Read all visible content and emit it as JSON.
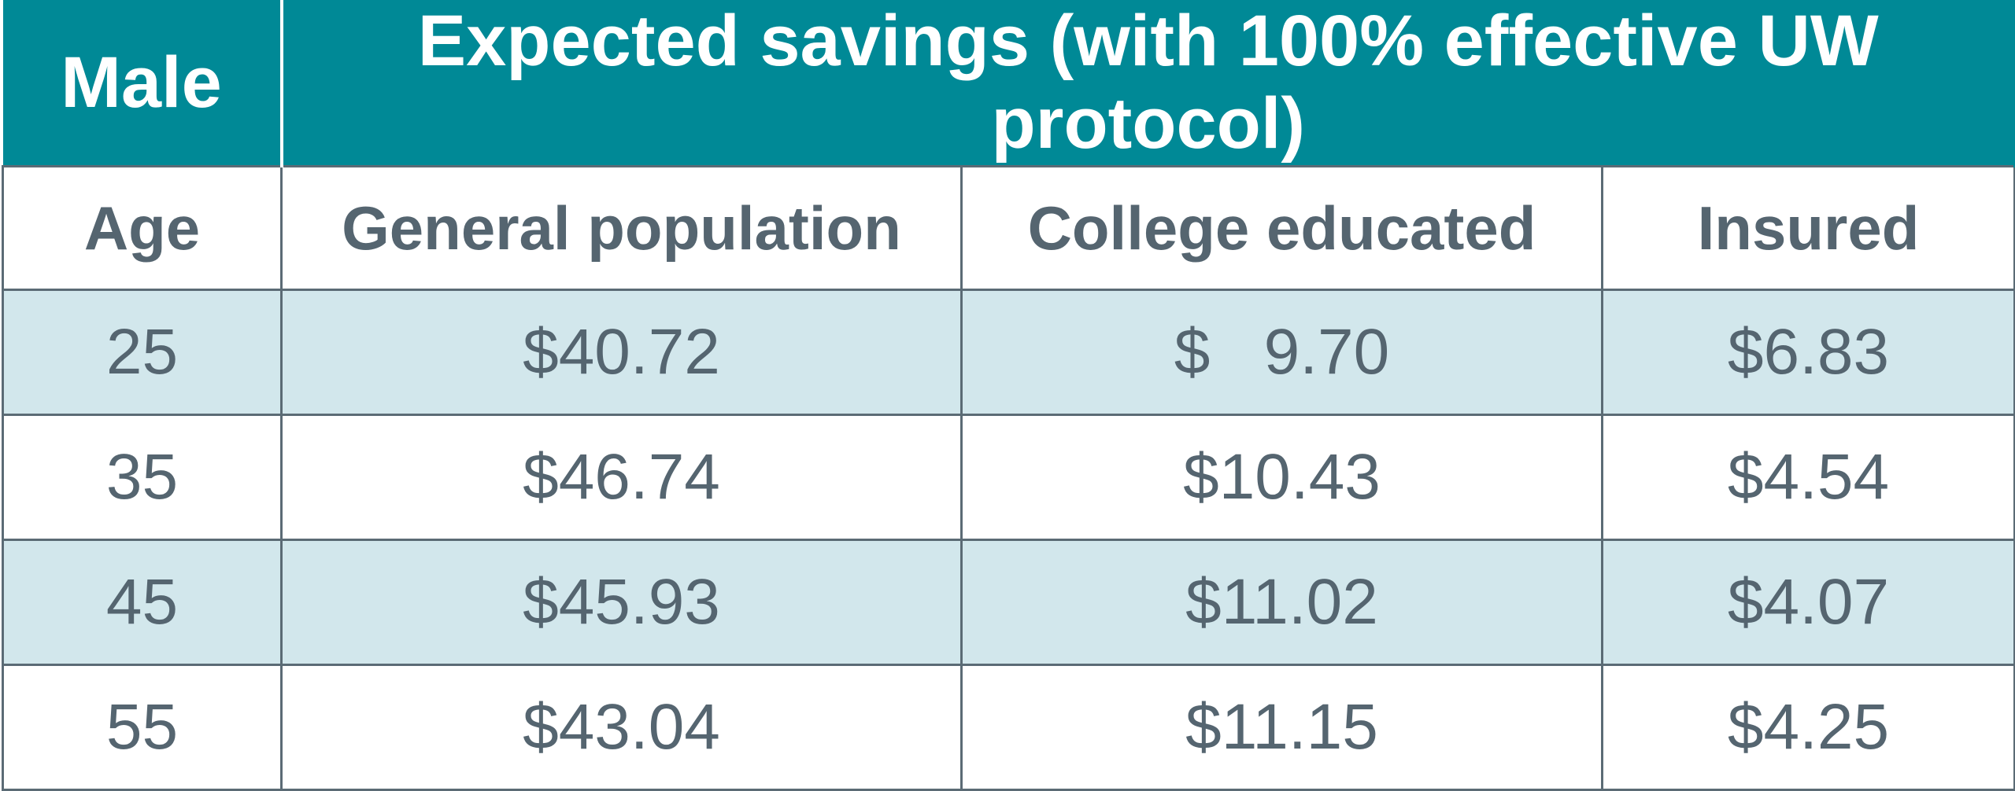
{
  "chart_data": {
    "type": "table",
    "header": {
      "group_label": "Male",
      "title": "Expected savings (with 100% effective UW protocol)"
    },
    "columns": [
      "Age",
      "General population",
      "College educated",
      "Insured"
    ],
    "rows": [
      [
        "25",
        "$40.72",
        "$   9.70",
        "$6.83"
      ],
      [
        "35",
        "$46.74",
        "$10.43",
        "$4.54"
      ],
      [
        "45",
        "$45.93",
        "$11.02",
        "$4.07"
      ],
      [
        "55",
        "$43.04",
        "$11.15",
        "$4.25"
      ]
    ]
  },
  "colors": {
    "header_bg": "#008996",
    "header_text": "#ffffff",
    "body_text": "#556570",
    "stripe_bg": "#d2e7ec",
    "border": "#5b6b75"
  }
}
